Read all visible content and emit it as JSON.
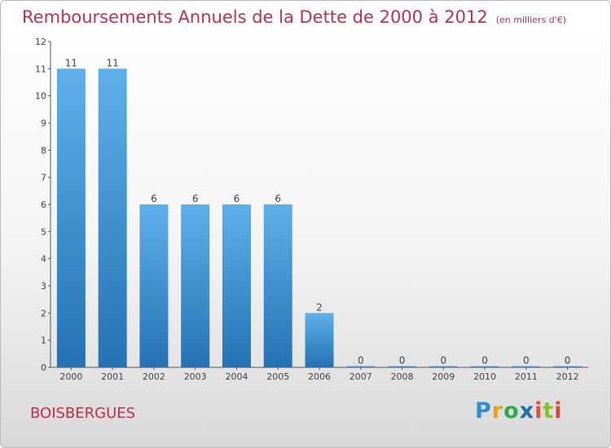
{
  "header": {
    "title": "Remboursements Annuels de la Dette de 2000 à 2012",
    "unit": "(en milliers d'€)"
  },
  "footer": {
    "commune": "BOISBERGUES",
    "logo": {
      "p": "P",
      "r": "r",
      "o": "o",
      "x": "x",
      "i1": "i",
      "t": "t",
      "i2": "i"
    }
  },
  "chart_data": {
    "type": "bar",
    "title": "Remboursements Annuels de la Dette de 2000 à 2012",
    "subtitle": "(en milliers d'€)",
    "xlabel": "",
    "ylabel": "",
    "categories": [
      "2000",
      "2001",
      "2002",
      "2003",
      "2004",
      "2005",
      "2006",
      "2007",
      "2008",
      "2009",
      "2010",
      "2011",
      "2012"
    ],
    "values": [
      11,
      11,
      6,
      6,
      6,
      6,
      2,
      0,
      0,
      0,
      0,
      0,
      0
    ],
    "data_labels": [
      "11",
      "11",
      "6",
      "6",
      "6",
      "6",
      "2",
      "0",
      "0",
      "0",
      "0",
      "0",
      "0"
    ],
    "ylim": [
      0,
      12
    ],
    "yticks": [
      "0",
      "1",
      "2",
      "3",
      "4",
      "5",
      "6",
      "7",
      "8",
      "9",
      "10",
      "11",
      "12"
    ],
    "grid": false,
    "colors": {
      "bar_light": "#5fb0ea",
      "bar_dark": "#2472b3",
      "title": "#c0304a"
    }
  }
}
